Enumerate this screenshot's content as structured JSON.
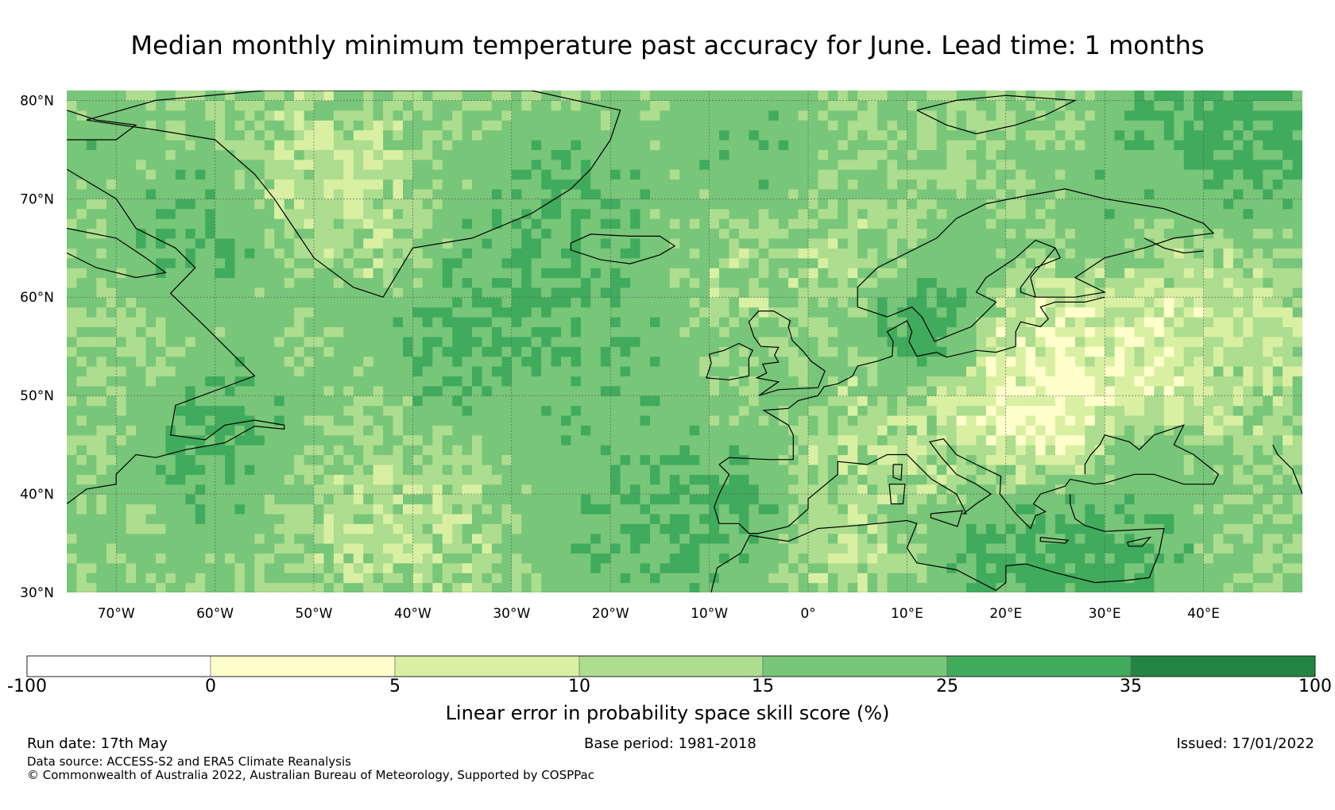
{
  "title": "Median monthly minimum temperature past accuracy for June. Lead time: 1 months",
  "map": {
    "lat_labels": [
      "80°N",
      "70°N",
      "60°N",
      "50°N",
      "40°N",
      "30°N"
    ],
    "lon_labels": [
      "70°W",
      "60°W",
      "50°W",
      "40°W",
      "30°W",
      "20°W",
      "10°W",
      "0°",
      "10°E",
      "20°E",
      "30°E",
      "40°E"
    ],
    "lat_range": [
      30,
      81
    ],
    "lon_range": [
      -75,
      50
    ],
    "coastline_color": "#000000",
    "gridline_color": "#555555"
  },
  "colorbar": {
    "title": "Linear error in probability space skill score (%)",
    "ticks": [
      "-100",
      "0",
      "5",
      "10",
      "15",
      "25",
      "35",
      "100"
    ],
    "colors": [
      "#ffffff",
      "#ffffcc",
      "#d9f0a3",
      "#addd8e",
      "#78c679",
      "#41ab5d",
      "#238443"
    ]
  },
  "footer": {
    "run_date": "Run date: 17th May",
    "base_period": "Base period: 1981-2018",
    "issued": "Issued: 17/01/2022",
    "data_source": "Data source: ACCESS-S2 and ERA5 Climate Reanalysis",
    "copyright": "© Commonwealth of Australia 2022, Australian Bureau of Meteorology, Supported by COSPPac"
  }
}
